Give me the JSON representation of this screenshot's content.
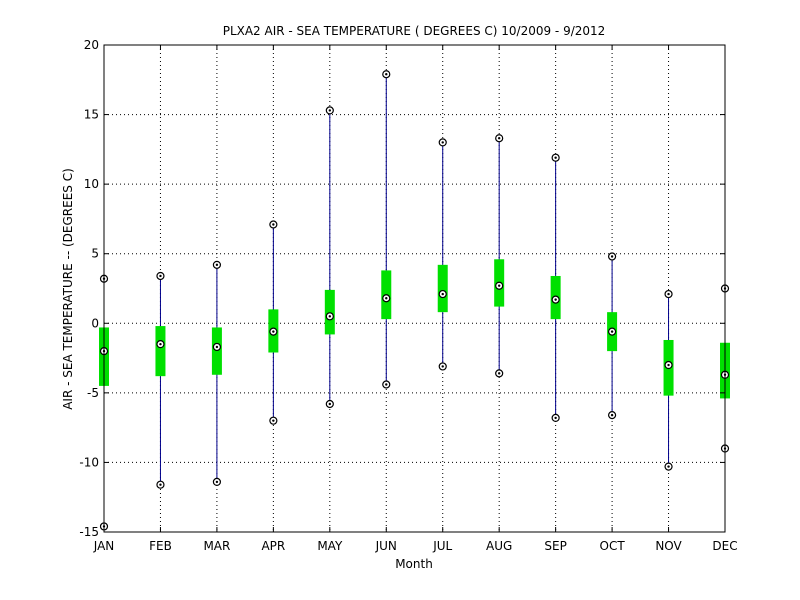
{
  "chart_data": {
    "type": "box",
    "title": "PLXA2  AIR - SEA TEMPERATURE ( DEGREES C) 10/2009 - 9/2012",
    "xlabel": "Month",
    "ylabel": "AIR - SEA TEMPERATURE -- (DEGREES C)",
    "categories": [
      "JAN",
      "FEB",
      "MAR",
      "APR",
      "MAY",
      "JUN",
      "JUL",
      "AUG",
      "SEP",
      "OCT",
      "NOV",
      "DEC"
    ],
    "ylim": [
      -15,
      20
    ],
    "yticks": [
      -15,
      -10,
      -5,
      0,
      5,
      10,
      15,
      20
    ],
    "grid": "dotted",
    "colors": {
      "whisker": "#00008b",
      "box": "#00e000",
      "marker": "#000000"
    },
    "series": [
      {
        "name": "min",
        "values": [
          -14.6,
          -11.6,
          -11.4,
          -7.0,
          -5.8,
          -4.4,
          -3.1,
          -3.6,
          -6.8,
          -6.6,
          -10.3,
          -9.0
        ]
      },
      {
        "name": "q1",
        "values": [
          -4.5,
          -3.8,
          -3.7,
          -2.1,
          -0.8,
          0.3,
          0.8,
          1.2,
          0.3,
          -2.0,
          -5.2,
          -5.4
        ]
      },
      {
        "name": "median",
        "values": [
          -2.0,
          -1.5,
          -1.7,
          -0.6,
          0.5,
          1.8,
          2.1,
          2.7,
          1.7,
          -0.6,
          -3.0,
          -3.7
        ]
      },
      {
        "name": "q3",
        "values": [
          -0.3,
          -0.2,
          -0.3,
          1.0,
          2.4,
          3.8,
          4.2,
          4.6,
          3.4,
          0.8,
          -1.2,
          -1.4
        ]
      },
      {
        "name": "max",
        "values": [
          3.2,
          3.4,
          4.2,
          7.1,
          15.3,
          17.9,
          13.0,
          13.3,
          11.9,
          4.8,
          2.1,
          2.5
        ]
      }
    ]
  }
}
